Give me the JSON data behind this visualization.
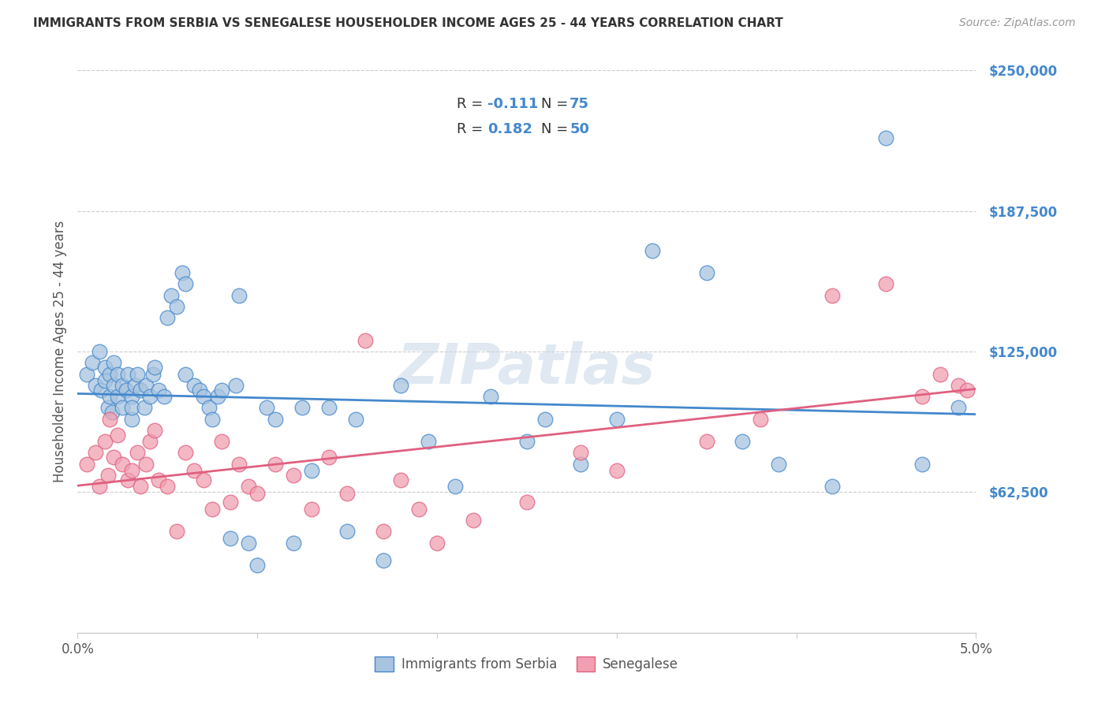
{
  "title": "IMMIGRANTS FROM SERBIA VS SENEGALESE HOUSEHOLDER INCOME AGES 25 - 44 YEARS CORRELATION CHART",
  "source": "Source: ZipAtlas.com",
  "ylabel": "Householder Income Ages 25 - 44 years",
  "serbia_R": -0.111,
  "serbia_N": 75,
  "senegal_R": 0.182,
  "senegal_N": 50,
  "serbia_color": "#a8c4e0",
  "senegal_color": "#f0a0b0",
  "serbia_line_color": "#4488cc",
  "senegal_line_color": "#e06080",
  "accent_color": "#4488cc",
  "background_color": "#ffffff",
  "title_color": "#333333",
  "grid_color": "#cccccc",
  "xlim": [
    0.0,
    5.0
  ],
  "ylim": [
    0,
    250000
  ],
  "yticks": [
    0,
    62500,
    125000,
    187500,
    250000
  ],
  "ytick_labels": [
    "",
    "$62,500",
    "$125,000",
    "$187,500",
    "$250,000"
  ],
  "serbia_x": [
    0.05,
    0.08,
    0.1,
    0.12,
    0.13,
    0.15,
    0.15,
    0.17,
    0.18,
    0.18,
    0.19,
    0.2,
    0.2,
    0.22,
    0.22,
    0.25,
    0.25,
    0.27,
    0.28,
    0.3,
    0.3,
    0.3,
    0.32,
    0.33,
    0.35,
    0.37,
    0.38,
    0.4,
    0.42,
    0.43,
    0.45,
    0.48,
    0.5,
    0.52,
    0.55,
    0.58,
    0.6,
    0.6,
    0.65,
    0.68,
    0.7,
    0.73,
    0.75,
    0.78,
    0.8,
    0.85,
    0.88,
    0.9,
    0.95,
    1.0,
    1.05,
    1.1,
    1.2,
    1.25,
    1.3,
    1.4,
    1.5,
    1.55,
    1.7,
    1.8,
    1.95,
    2.1,
    2.3,
    2.5,
    2.6,
    2.8,
    3.0,
    3.2,
    3.5,
    3.7,
    3.9,
    4.2,
    4.5,
    4.7,
    4.9
  ],
  "serbia_y": [
    115000,
    120000,
    110000,
    125000,
    108000,
    118000,
    112000,
    100000,
    105000,
    115000,
    98000,
    110000,
    120000,
    105000,
    115000,
    100000,
    110000,
    108000,
    115000,
    95000,
    105000,
    100000,
    110000,
    115000,
    108000,
    100000,
    110000,
    105000,
    115000,
    118000,
    108000,
    105000,
    140000,
    150000,
    145000,
    160000,
    155000,
    115000,
    110000,
    108000,
    105000,
    100000,
    95000,
    105000,
    108000,
    42000,
    110000,
    150000,
    40000,
    30000,
    100000,
    95000,
    40000,
    100000,
    72000,
    100000,
    45000,
    95000,
    32000,
    110000,
    85000,
    65000,
    105000,
    85000,
    95000,
    75000,
    95000,
    170000,
    160000,
    85000,
    75000,
    65000,
    220000,
    75000,
    100000
  ],
  "senegal_x": [
    0.05,
    0.1,
    0.12,
    0.15,
    0.17,
    0.18,
    0.2,
    0.22,
    0.25,
    0.28,
    0.3,
    0.33,
    0.35,
    0.38,
    0.4,
    0.43,
    0.45,
    0.5,
    0.55,
    0.6,
    0.65,
    0.7,
    0.75,
    0.8,
    0.85,
    0.9,
    0.95,
    1.0,
    1.1,
    1.2,
    1.3,
    1.4,
    1.5,
    1.6,
    1.7,
    1.8,
    1.9,
    2.0,
    2.2,
    2.5,
    2.8,
    3.0,
    3.5,
    3.8,
    4.2,
    4.5,
    4.7,
    4.8,
    4.9,
    4.95
  ],
  "senegal_y": [
    75000,
    80000,
    65000,
    85000,
    70000,
    95000,
    78000,
    88000,
    75000,
    68000,
    72000,
    80000,
    65000,
    75000,
    85000,
    90000,
    68000,
    65000,
    45000,
    80000,
    72000,
    68000,
    55000,
    85000,
    58000,
    75000,
    65000,
    62000,
    75000,
    70000,
    55000,
    78000,
    62000,
    130000,
    45000,
    68000,
    55000,
    40000,
    50000,
    58000,
    80000,
    72000,
    85000,
    95000,
    150000,
    155000,
    105000,
    115000,
    110000,
    108000
  ]
}
